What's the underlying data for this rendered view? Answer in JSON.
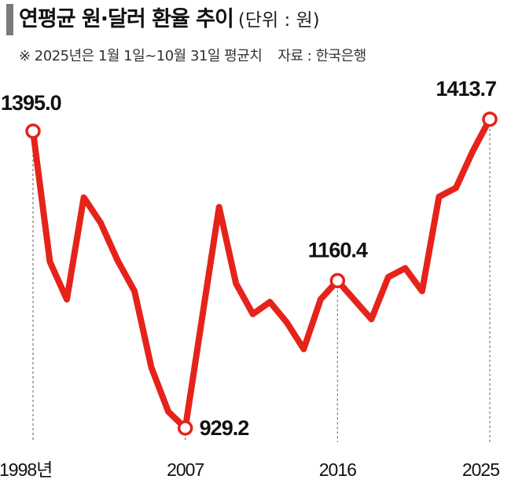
{
  "header": {
    "title": "연평균 원·달러 환율 추이",
    "unit_note": "(단위 : 원)",
    "period_note": "※ 2025년은 1월 1일~10월 31일 평균치",
    "source_note": "자료 : 한국은행"
  },
  "colors": {
    "line": "#e5231b",
    "guide": "#777777",
    "title_bar": "#7a7a7a"
  },
  "chart_data": {
    "type": "line",
    "title": "연평균 원·달러 환율 추이",
    "unit": "원",
    "x": [
      1998,
      1999,
      2000,
      2001,
      2002,
      2003,
      2004,
      2005,
      2006,
      2007,
      2008,
      2009,
      2010,
      2011,
      2012,
      2013,
      2014,
      2015,
      2016,
      2017,
      2018,
      2019,
      2020,
      2021,
      2022,
      2023,
      2024,
      2025
    ],
    "series": [
      {
        "values": [
          1395.0,
          1190,
          1131,
          1291,
          1251,
          1192,
          1144,
          1024,
          955,
          929.2,
          1103,
          1276,
          1156,
          1108,
          1127,
          1095,
          1053,
          1131,
          1160.4,
          1130,
          1100,
          1166,
          1180,
          1144,
          1292,
          1306,
          1364,
          1413.7
        ]
      }
    ],
    "xticks": [
      {
        "value": 1998,
        "label": "1998년"
      },
      {
        "value": 2007,
        "label": "2007"
      },
      {
        "value": 2016,
        "label": "2016"
      },
      {
        "value": 2025,
        "label": "2025"
      }
    ],
    "annotations": [
      {
        "x": 1998,
        "y": 1395.0,
        "label": "1395.0"
      },
      {
        "x": 2007,
        "y": 929.2,
        "label": "929.2"
      },
      {
        "x": 2016,
        "y": 1160.4,
        "label": "1160.4"
      },
      {
        "x": 2025,
        "y": 1413.7,
        "label": "1413.7"
      }
    ],
    "ylim": [
      900,
      1430
    ],
    "grid": false,
    "legend": "none"
  }
}
